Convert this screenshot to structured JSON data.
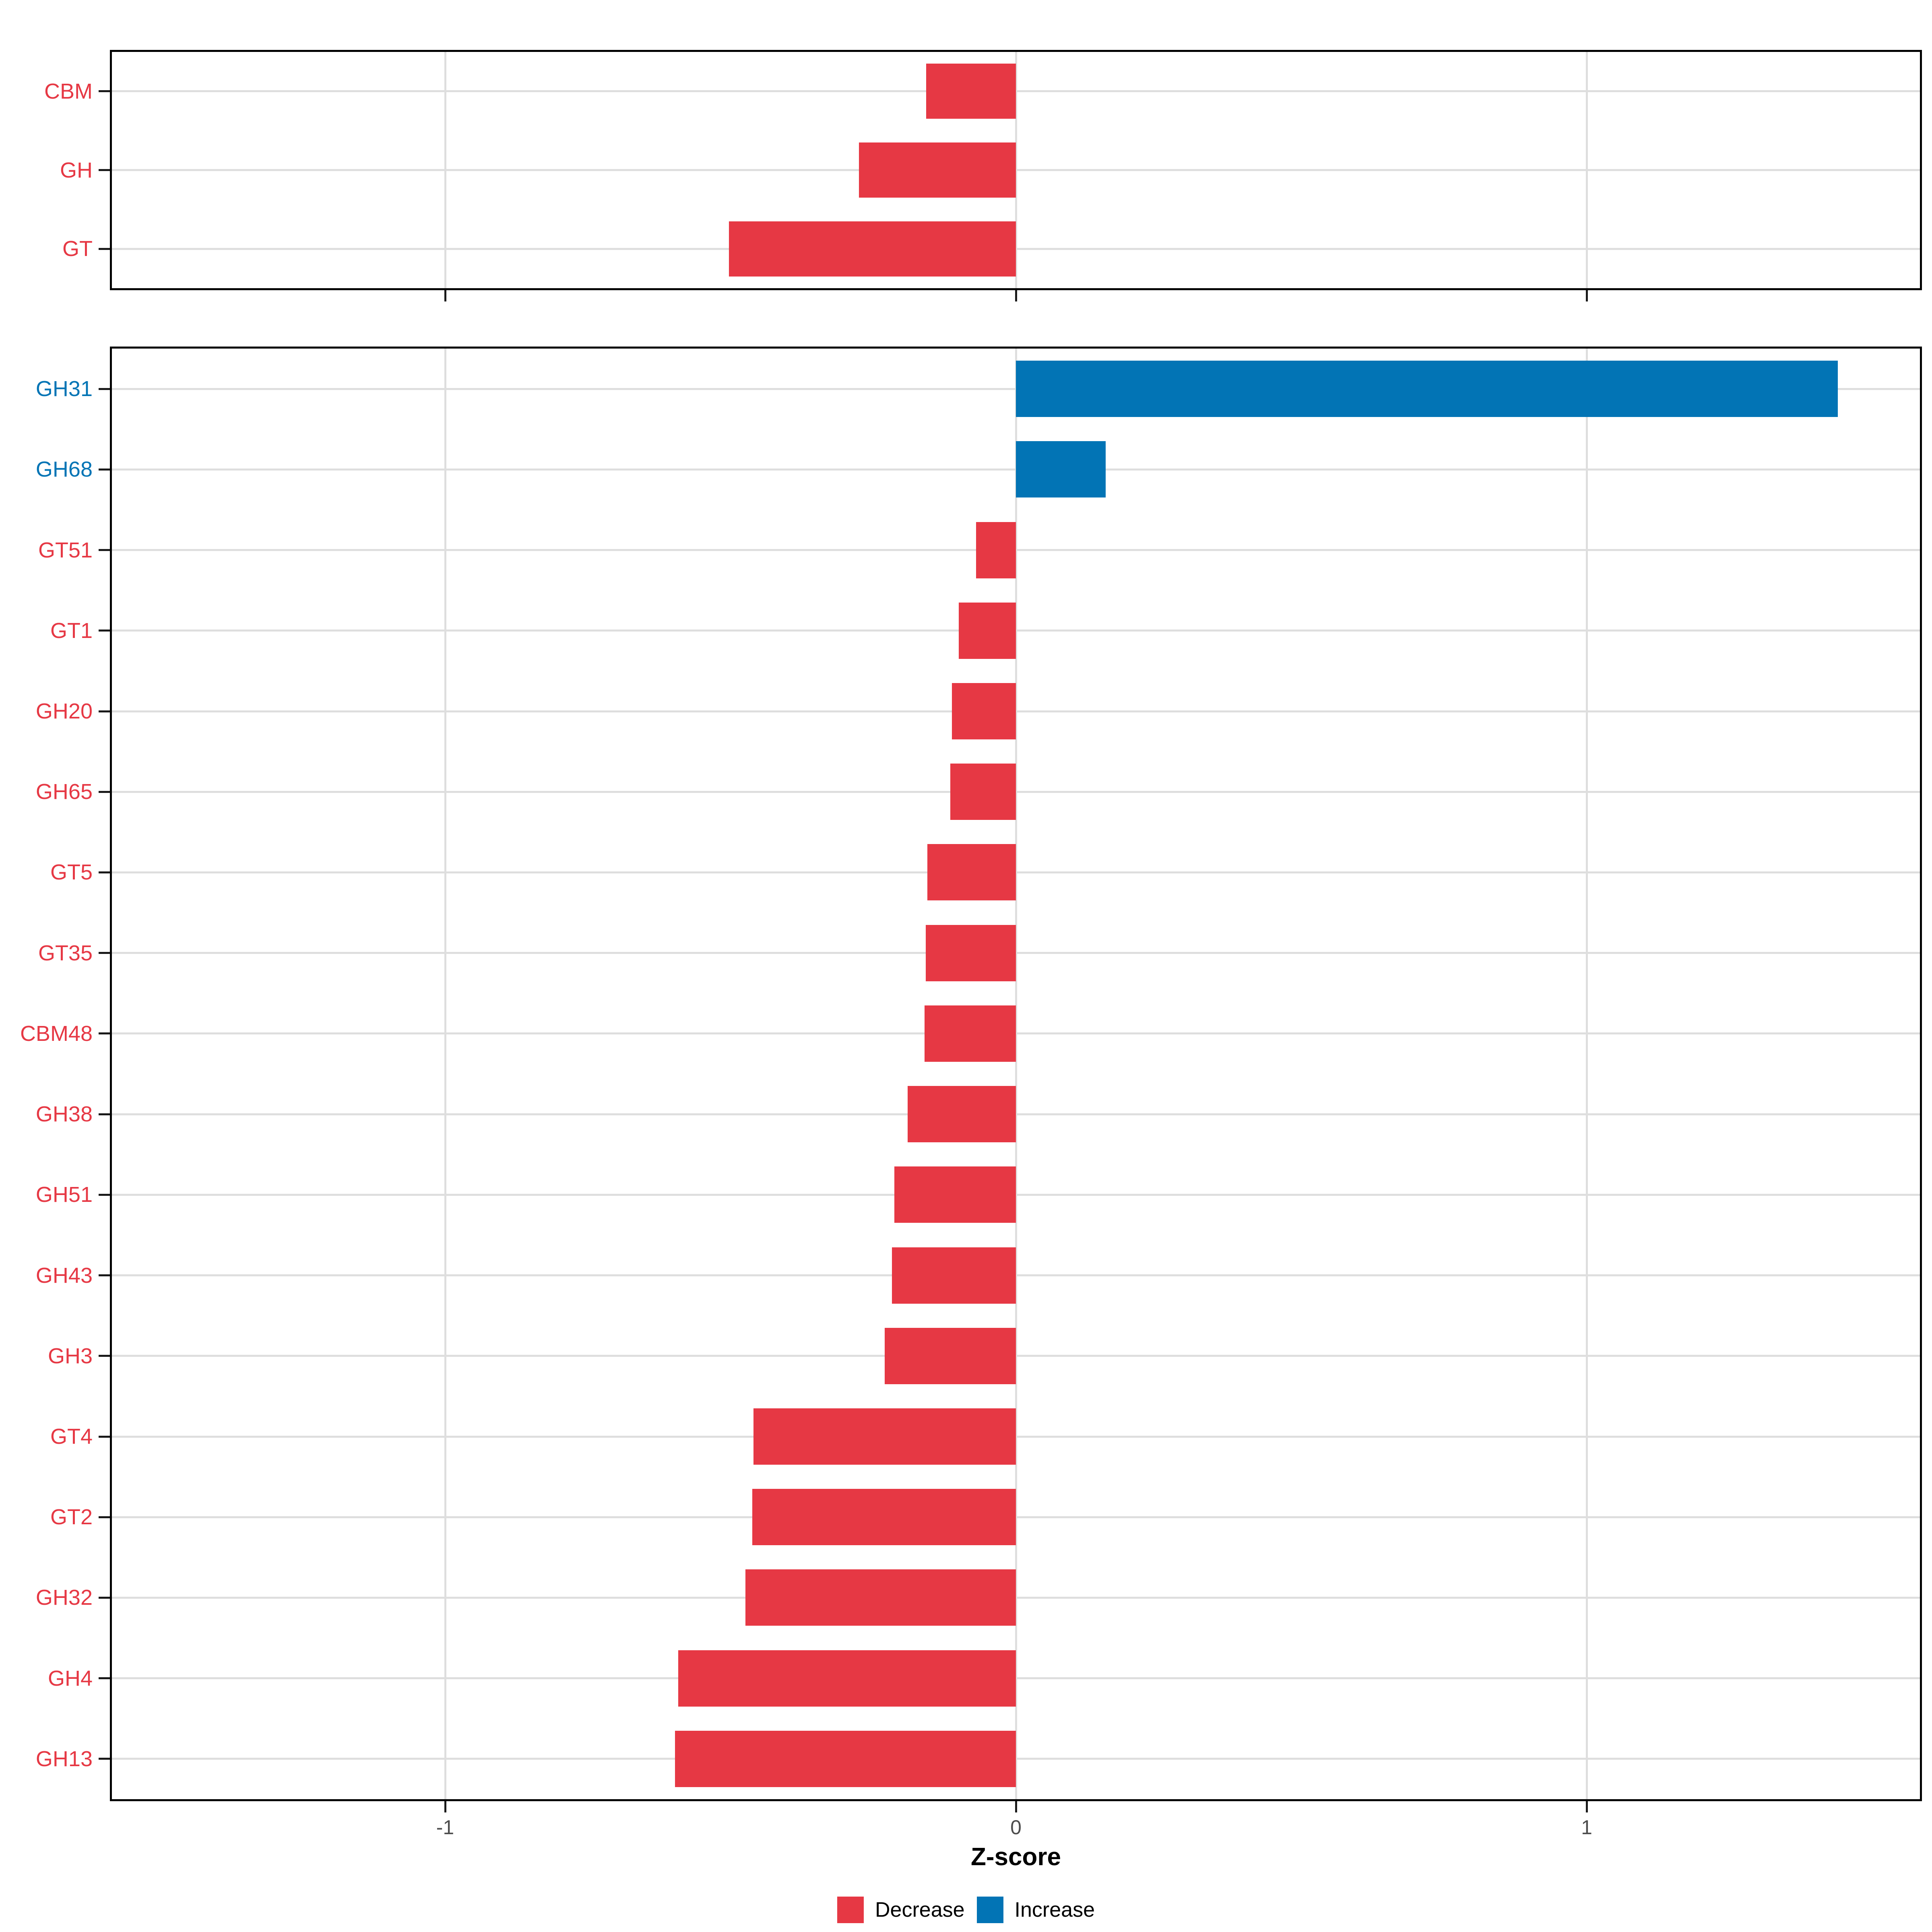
{
  "chart_data": {
    "type": "bar",
    "orientation": "horizontal",
    "title": "",
    "xlabel": "Z-score",
    "ylabel": "",
    "xlim": [
      -1.59,
      1.59
    ],
    "grid": "major-only",
    "legend_position": "bottom",
    "x_ticks": [
      {
        "label": "-1",
        "value": -1
      },
      {
        "label": "0",
        "value": 0
      },
      {
        "label": "1",
        "value": 1
      }
    ],
    "colors": {
      "decrease": "#E63844",
      "increase": "#0274B5",
      "gridline": "#DEDEDE",
      "tick_label": "#4d4d4d",
      "panel_border": "#000000"
    },
    "legend": [
      {
        "label": "Decrease",
        "direction": "decrease",
        "color": "#E63844"
      },
      {
        "label": "Increase",
        "direction": "increase",
        "color": "#0274B5"
      }
    ],
    "panels": [
      {
        "name": "cazyme-classes",
        "categories": [
          "CBM",
          "GH",
          "GT"
        ],
        "values": [
          -0.157,
          -0.275,
          -0.503
        ]
      },
      {
        "name": "cazyme-families",
        "categories": [
          "GH31",
          "GH68",
          "GT51",
          "GT1",
          "GH20",
          "GH65",
          "GT5",
          "GT35",
          "CBM48",
          "GH38",
          "GH51",
          "GH43",
          "GH3",
          "GT4",
          "GT2",
          "GH32",
          "GH4",
          "GH13"
        ],
        "values": [
          1.44,
          0.157,
          -0.07,
          -0.1,
          -0.112,
          -0.115,
          -0.155,
          -0.158,
          -0.16,
          -0.19,
          -0.213,
          -0.217,
          -0.23,
          -0.46,
          -0.462,
          -0.474,
          -0.592,
          -0.597
        ]
      }
    ]
  }
}
